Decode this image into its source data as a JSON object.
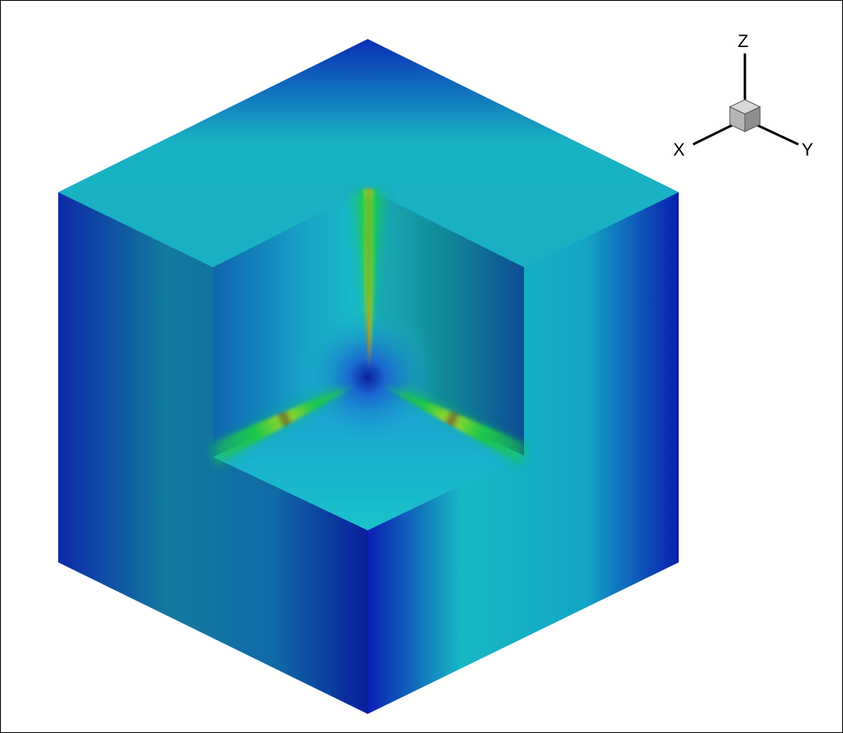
{
  "triad": {
    "x_label": "X",
    "y_label": "Y",
    "z_label": "Z"
  },
  "colormap": {
    "dark_blue": "#0a1aa8",
    "blue": "#0a4fc8",
    "cyan": "#17b6c0",
    "green": "#1fc84a",
    "yellow": "#d9e21a",
    "red": "#c81e12"
  }
}
